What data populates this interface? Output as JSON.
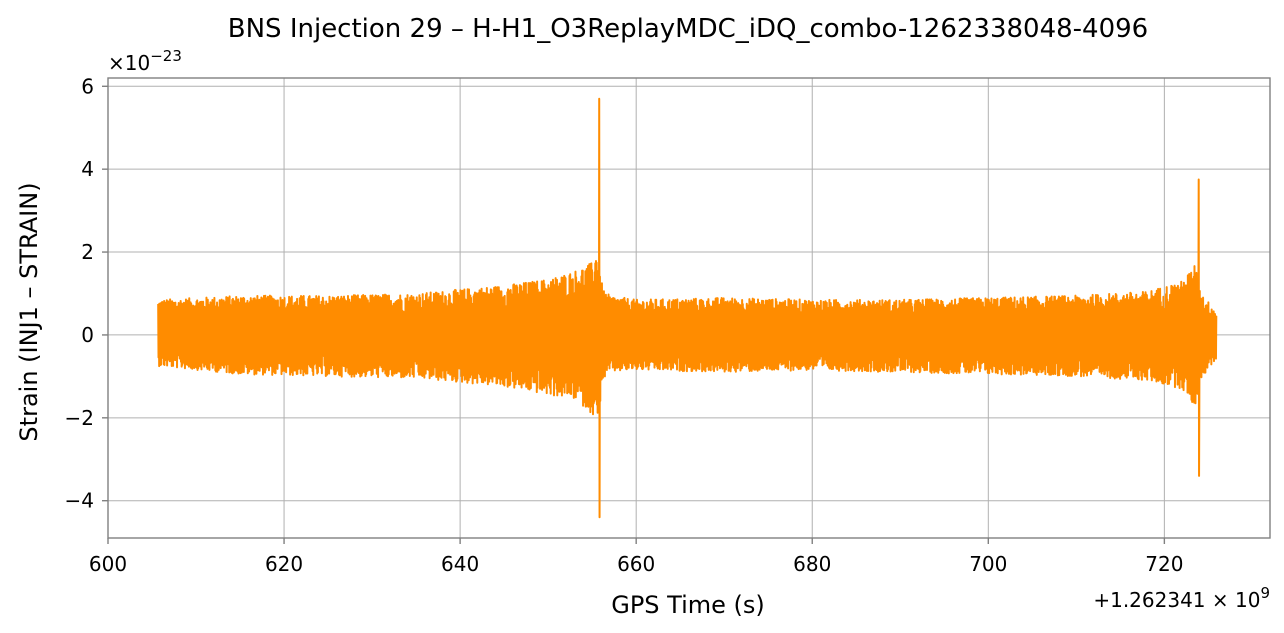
{
  "chart_data": {
    "type": "line",
    "title": "BNS Injection 29 – H-H1_O3ReplayMDC_iDQ_combo-1262338048-4096",
    "xlabel": "GPS Time (s)",
    "ylabel": "Strain (INJ1 – STRAIN)",
    "x_offset_label": "+1.262341 × 10",
    "x_offset_exponent": "9",
    "y_multiplier_label": "×10",
    "y_multiplier_exponent": "−23",
    "xlim": [
      600,
      732
    ],
    "ylim": [
      -4.9,
      6.2
    ],
    "x_ticks": [
      600,
      620,
      640,
      660,
      680,
      700,
      720
    ],
    "x_tick_labels": [
      "600",
      "620",
      "640",
      "660",
      "680",
      "700",
      "720"
    ],
    "y_ticks": [
      -4,
      -2,
      0,
      2,
      4,
      6
    ],
    "y_tick_labels": [
      "−4",
      "−2",
      "0",
      "2",
      "4",
      "6"
    ],
    "grid": true,
    "color": "#ff8c00",
    "series": [
      {
        "x_range": [
          605.7,
          725.9
        ],
        "envelope_x": [
          605.7,
          615,
          625,
          635,
          645,
          650,
          653,
          655,
          655.6,
          656.2,
          657,
          660,
          670,
          680,
          690,
          700,
          710,
          718,
          722,
          723.5,
          724.2,
          725,
          725.9
        ],
        "envelope_upper": [
          0.85,
          0.95,
          0.95,
          1.0,
          1.2,
          1.35,
          1.55,
          1.75,
          2.1,
          1.1,
          0.95,
          0.85,
          0.9,
          0.85,
          0.85,
          0.9,
          0.95,
          1.05,
          1.3,
          1.7,
          1.0,
          0.8,
          0.6
        ],
        "envelope_lower": [
          -0.75,
          -0.95,
          -1.0,
          -1.05,
          -1.25,
          -1.45,
          -1.55,
          -1.9,
          -2.2,
          -1.1,
          -0.9,
          -0.85,
          -0.9,
          -0.85,
          -0.9,
          -0.95,
          -1.0,
          -1.1,
          -1.3,
          -1.75,
          -1.1,
          -0.8,
          -0.6
        ],
        "spikes": [
          {
            "x": 655.8,
            "max": 5.7,
            "min": -4.4
          },
          {
            "x": 723.9,
            "max": 3.75,
            "min": -3.4
          }
        ]
      }
    ]
  }
}
